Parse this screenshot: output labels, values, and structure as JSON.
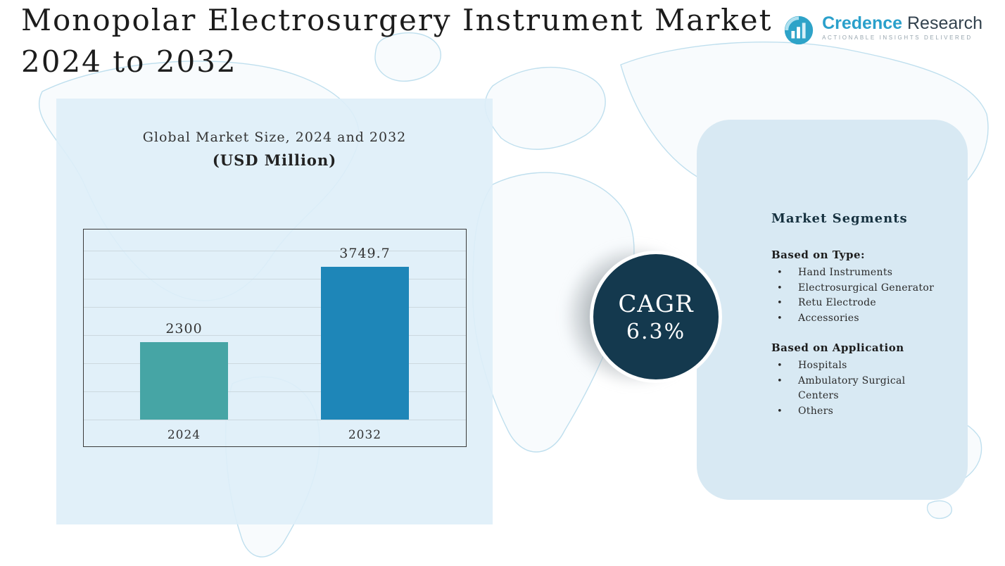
{
  "title": {
    "text": "Monopolar Electrosurgery Instrument Market\n2024 to 2032"
  },
  "logo": {
    "brand_primary": "Credence",
    "brand_secondary": " Research",
    "tagline": "Actionable Insights Delivered"
  },
  "chart_panel": {
    "heading": "Global Market Size, 2024 and 2032",
    "subheading": "(USD Million)"
  },
  "chart_data": {
    "type": "bar",
    "title": "Global Market Size, 2024 and 2032 (USD Million)",
    "categories": [
      "2024",
      "2032"
    ],
    "values": [
      2300,
      3749.7
    ],
    "value_labels": [
      "2300",
      "3749.7"
    ],
    "bar_colors": [
      "#46a5a5",
      "#1e86b8"
    ],
    "ylim": [
      800,
      3930
    ],
    "grid": true,
    "legend": "none"
  },
  "cagr": {
    "label": "CAGR",
    "value": "6.3%"
  },
  "segments": {
    "heading": "Market Segments",
    "groups": [
      {
        "title": "Based on Type:",
        "items": [
          "Hand Instruments",
          "Electrosurgical Generator",
          "Retu Electrode",
          "Accessories"
        ]
      },
      {
        "title": "Based on Application",
        "items": [
          "Hospitals",
          "Ambulatory Surgical Centers",
          "Others"
        ]
      }
    ]
  },
  "colors": {
    "panel_blue": "#d8e9f3",
    "bar_teal": "#46a5a5",
    "bar_blue": "#1e86b8",
    "cagr_navy": "#14394e",
    "map_line": "#bfdfee",
    "brand_blue": "#2aa0cb"
  }
}
